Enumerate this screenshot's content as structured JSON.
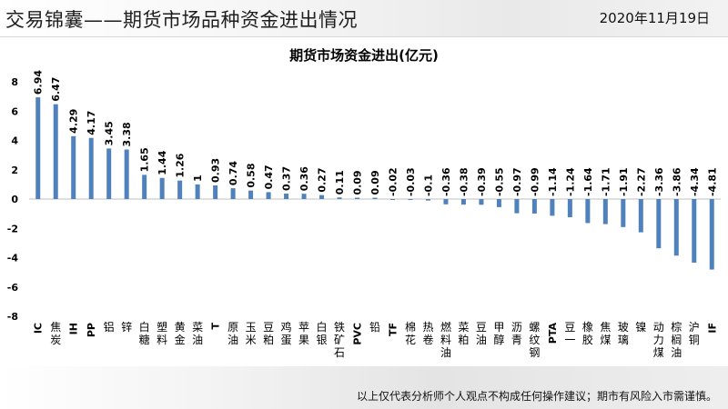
{
  "header": {
    "title": "交易锦囊——期货市场品种资金进出情况",
    "date": "2020年11月19日"
  },
  "footer": {
    "disclaimer": "以上仅代表分析师个人观点不构成任何操作建议；期市有风险入市需谨慎。"
  },
  "colors": {
    "bar": "#4f81bd"
  },
  "chart_data": {
    "type": "bar",
    "title": "期货市场资金进出(亿元)",
    "categories": [
      "IC",
      "焦炭",
      "IH",
      "PP",
      "铝",
      "锌",
      "白糖",
      "塑料",
      "黄金",
      "菜油",
      "T",
      "原油",
      "玉米",
      "豆粕",
      "鸡蛋",
      "苹果",
      "白银",
      "铁矿石",
      "PVC",
      "铅",
      "TF",
      "棉花",
      "热卷",
      "燃料油",
      "菜粕",
      "豆油",
      "甲醇",
      "沥青",
      "螺纹钢",
      "PTA",
      "豆一",
      "橡胶",
      "焦煤",
      "玻璃",
      "镍",
      "动力煤",
      "棕榈油",
      "沪铜",
      "IF"
    ],
    "values": [
      6.94,
      6.47,
      4.29,
      4.17,
      3.45,
      3.38,
      1.65,
      1.44,
      1.26,
      1,
      0.93,
      0.74,
      0.58,
      0.47,
      0.37,
      0.36,
      0.27,
      0.11,
      0.09,
      0.09,
      -0.02,
      -0.03,
      -0.1,
      -0.36,
      -0.38,
      -0.39,
      -0.55,
      -0.97,
      -0.99,
      -1.14,
      -1.24,
      -1.64,
      -1.71,
      -1.91,
      -2.27,
      -3.36,
      -3.86,
      -4.34,
      -4.81
    ],
    "ylim": [
      -8,
      8
    ],
    "yticks": [
      8,
      6,
      4,
      2,
      0,
      -2,
      -4,
      -6,
      -8
    ],
    "grid": false
  }
}
